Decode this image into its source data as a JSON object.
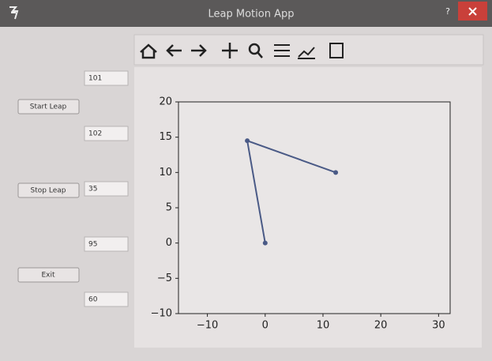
{
  "window": {
    "title": "Leap Motion App",
    "help": "?"
  },
  "buttons": [
    "Start Leap",
    "Stop Leap",
    "Exit"
  ],
  "fields": [
    "101",
    "102",
    "35",
    "95",
    "60"
  ],
  "chart_data": {
    "type": "line",
    "x": [
      0,
      -3.1,
      12.2
    ],
    "values": [
      0,
      14.5,
      10
    ],
    "color": "#4a5a86",
    "xlim": [
      -15,
      32
    ],
    "ylim": [
      -10,
      20
    ],
    "xticks": [
      {
        "value": -10,
        "label": "−10"
      },
      0,
      10,
      20,
      30
    ],
    "yticks": [
      {
        "value": -10,
        "label": "−10"
      },
      {
        "value": -5,
        "label": "−5"
      },
      0,
      5,
      10,
      15,
      20
    ]
  }
}
